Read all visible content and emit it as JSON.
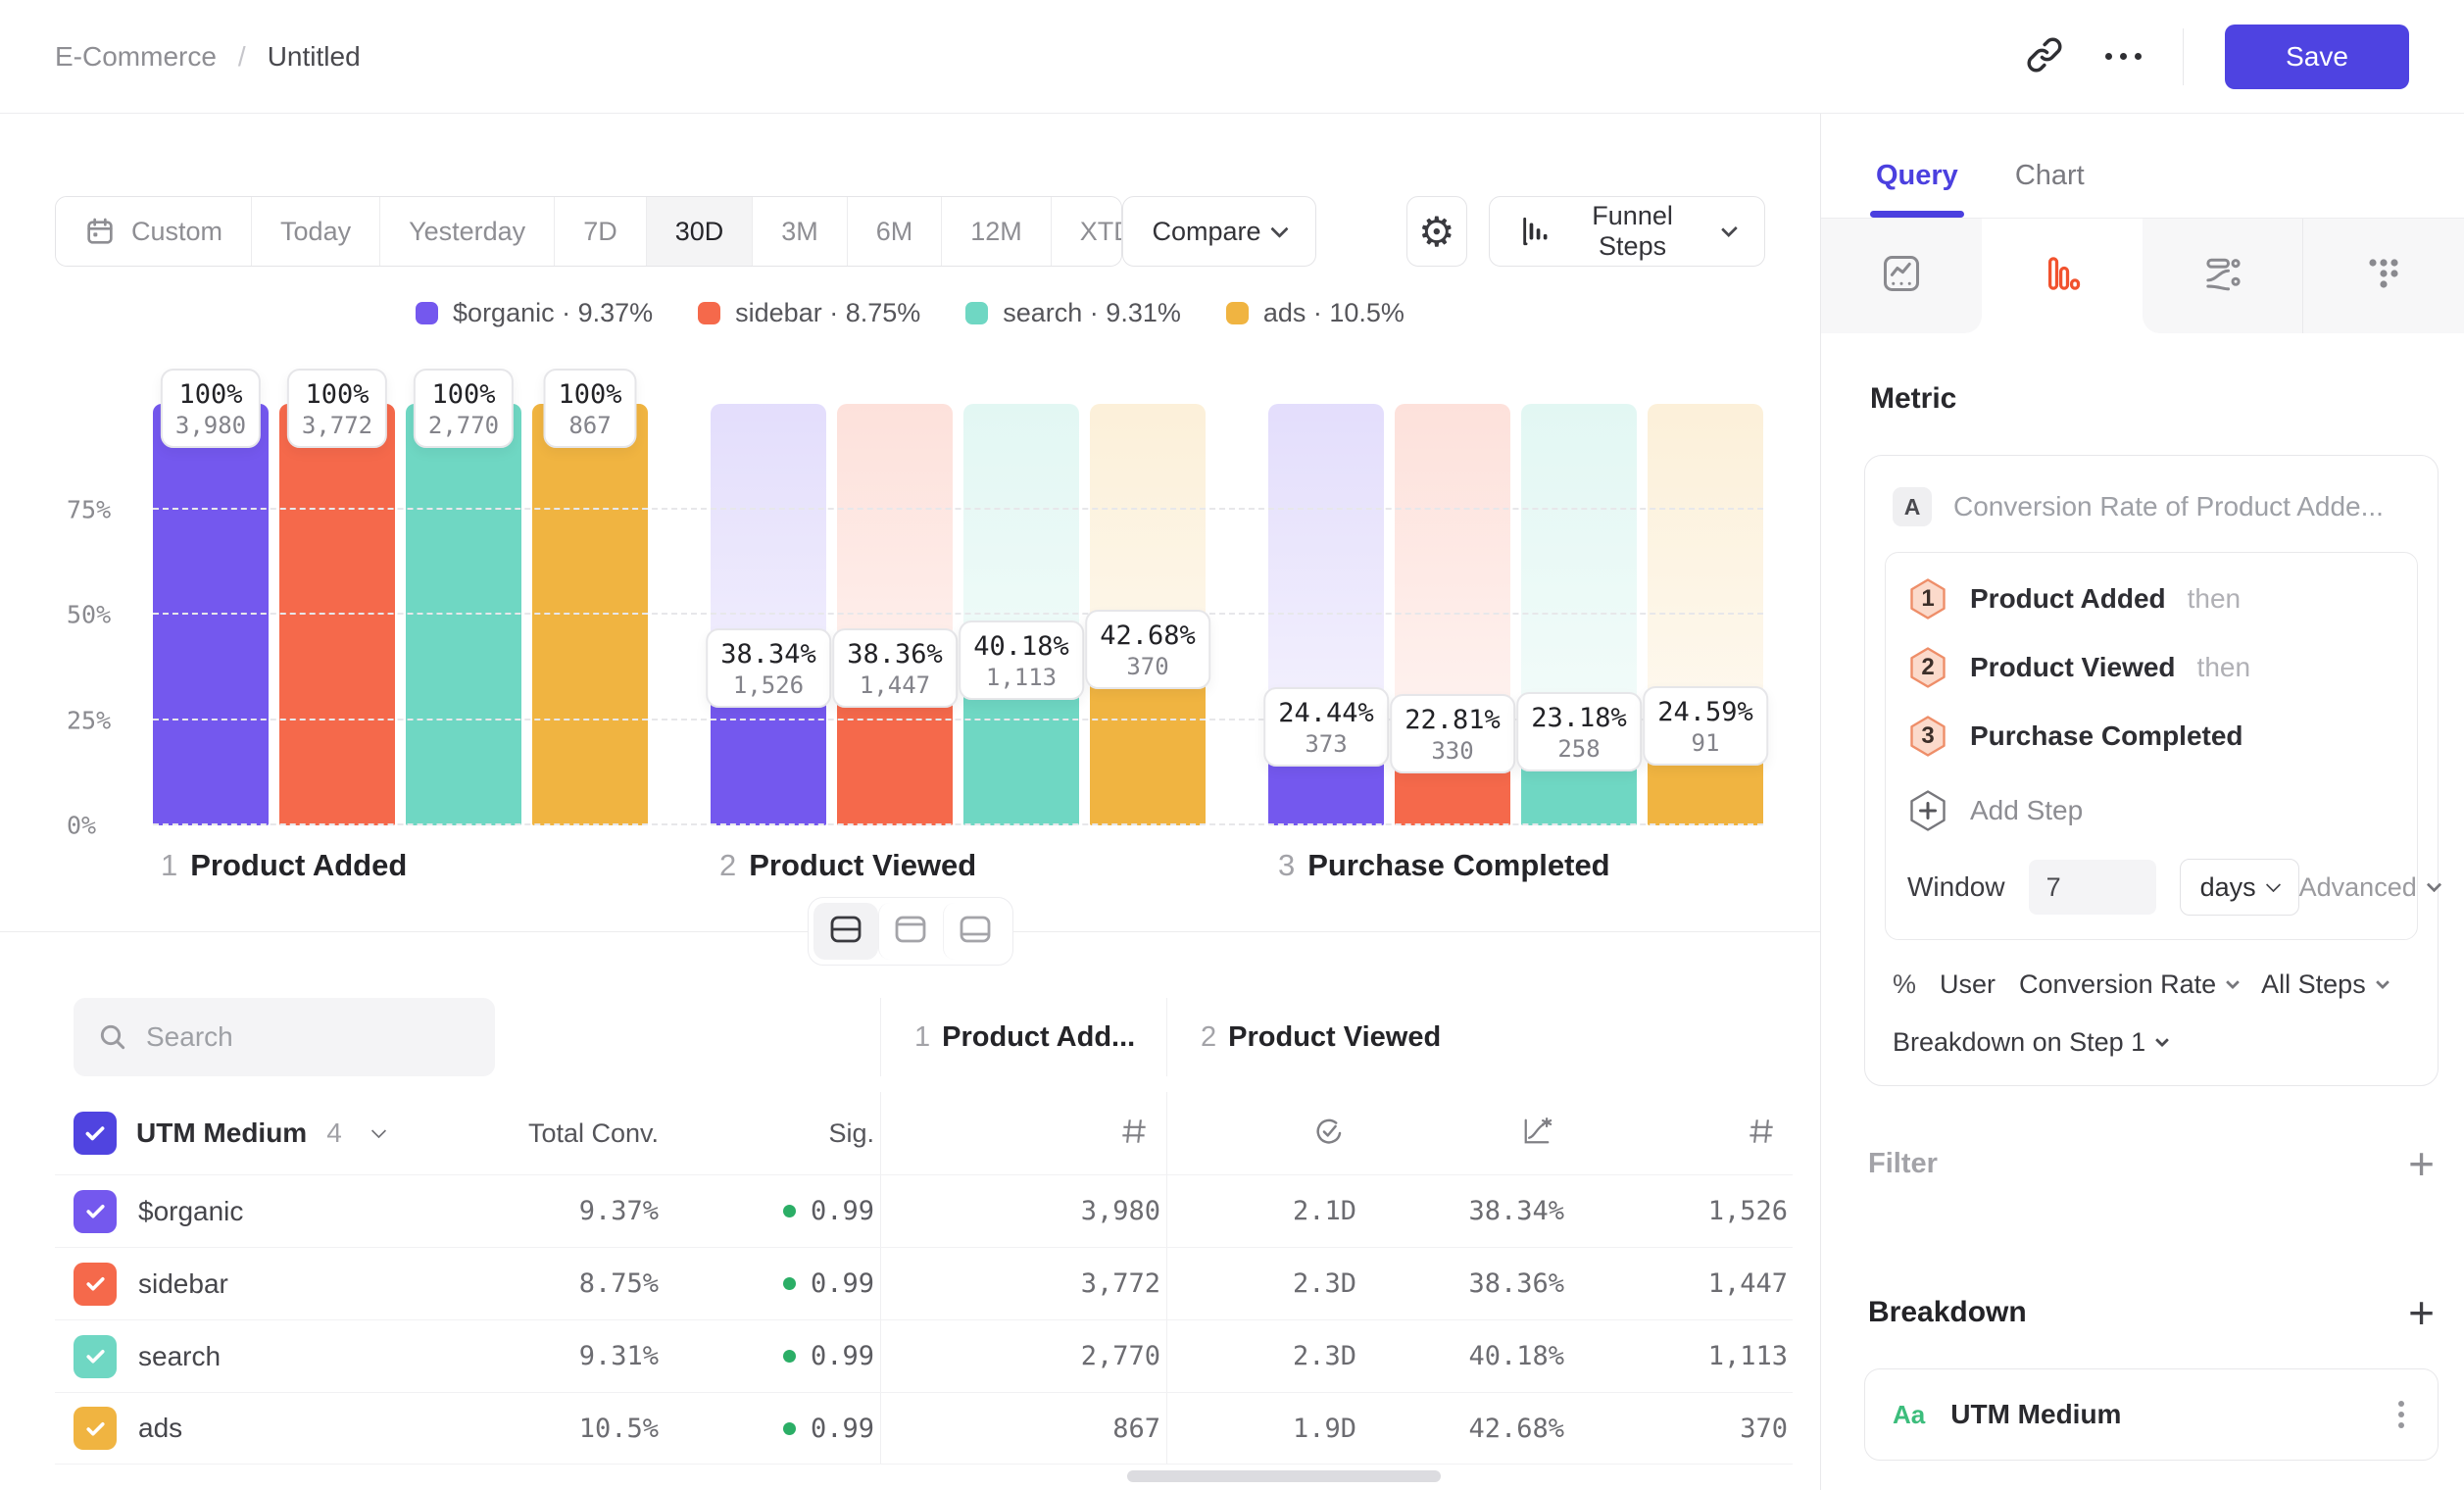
{
  "app": {
    "accent": "#4E43E1"
  },
  "header": {
    "breadcrumb_root": "E-Commerce",
    "breadcrumb_sep": "/",
    "breadcrumb_current": "Untitled",
    "save_label": "Save"
  },
  "toolbar": {
    "date_ranges": [
      {
        "label": "Custom",
        "icon": "calendar"
      },
      {
        "label": "Today"
      },
      {
        "label": "Yesterday"
      },
      {
        "label": "7D"
      },
      {
        "label": "30D"
      },
      {
        "label": "3M"
      },
      {
        "label": "6M"
      },
      {
        "label": "12M"
      },
      {
        "label": "XTD",
        "chevron": true
      }
    ],
    "selected_range": "30D",
    "compare_label": "Compare",
    "chart_type_label": "Funnel Steps"
  },
  "legend": {
    "items": [
      {
        "name": "$organic",
        "value": "9.37%",
        "color": "#7458EE"
      },
      {
        "name": "sidebar",
        "value": "8.75%",
        "color": "#F5694B"
      },
      {
        "name": "search",
        "value": "9.31%",
        "color": "#6FD7C3"
      },
      {
        "name": "ads",
        "value": "10.5%",
        "color": "#F0B441"
      }
    ]
  },
  "chart_data": {
    "type": "bar",
    "title": "Funnel Steps",
    "categories": [
      {
        "n": "1",
        "label": "Product Added"
      },
      {
        "n": "2",
        "label": "Product Viewed"
      },
      {
        "n": "3",
        "label": "Purchase Completed"
      }
    ],
    "y_ticks": [
      "0%",
      "25%",
      "50%",
      "75%"
    ],
    "ylim": [
      0,
      100
    ],
    "grid": "dashed-horizontal",
    "legend_position": "top-center",
    "series": [
      {
        "name": "$organic",
        "color": "#7458EE",
        "conversion_pct": [
          100,
          38.34,
          24.44
        ],
        "counts": [
          3980,
          1526,
          373
        ]
      },
      {
        "name": "sidebar",
        "color": "#F5694B",
        "conversion_pct": [
          100,
          38.36,
          22.81
        ],
        "counts": [
          3772,
          1447,
          330
        ]
      },
      {
        "name": "search",
        "color": "#6FD7C3",
        "conversion_pct": [
          100,
          40.18,
          23.18
        ],
        "counts": [
          2770,
          1113,
          258
        ]
      },
      {
        "name": "ads",
        "color": "#F0B441",
        "conversion_pct": [
          100,
          42.68,
          24.59
        ],
        "counts": [
          867,
          370,
          91
        ]
      }
    ]
  },
  "view_toggle": {
    "options": [
      "split-view",
      "chart-only",
      "table-only"
    ],
    "selected": "split-view"
  },
  "table": {
    "search_placeholder": "Search",
    "group_by": "UTM Medium",
    "group_count": "4",
    "col_total": "Total Conv.",
    "col_sig": "Sig.",
    "step_groups": [
      {
        "n": "1",
        "label": "Product Add..."
      },
      {
        "n": "2",
        "label": "Product Viewed"
      }
    ],
    "sig_color": "#2BAE66",
    "rows": [
      {
        "name": "$organic",
        "color": "#7458EE",
        "total_conv": "9.37%",
        "sig": "0.99",
        "step1_count": "3,980",
        "avg_time": "2.1D",
        "conv_rate": "38.34%",
        "converted": "1,526"
      },
      {
        "name": "sidebar",
        "color": "#F5694B",
        "total_conv": "8.75%",
        "sig": "0.99",
        "step1_count": "3,772",
        "avg_time": "2.3D",
        "conv_rate": "38.36%",
        "converted": "1,447"
      },
      {
        "name": "search",
        "color": "#6FD7C3",
        "total_conv": "9.31%",
        "sig": "0.99",
        "step1_count": "2,770",
        "avg_time": "2.3D",
        "conv_rate": "40.18%",
        "converted": "1,113"
      },
      {
        "name": "ads",
        "color": "#F0B441",
        "total_conv": "10.5%",
        "sig": "0.99",
        "step1_count": "867",
        "avg_time": "1.9D",
        "conv_rate": "42.68%",
        "converted": "370"
      }
    ]
  },
  "panel": {
    "tabs": [
      {
        "label": "Query",
        "active": true
      },
      {
        "label": "Chart",
        "active": false
      }
    ],
    "metric_heading": "Metric",
    "metric": {
      "badge": "A",
      "title": "Conversion Rate of Product Adde...",
      "steps": [
        {
          "n": "1",
          "label": "Product Added",
          "suffix": "then"
        },
        {
          "n": "2",
          "label": "Product Viewed",
          "suffix": "then"
        },
        {
          "n": "3",
          "label": "Purchase Completed",
          "suffix": ""
        }
      ],
      "add_step_label": "Add Step",
      "window_label": "Window",
      "window_value": "7",
      "window_unit": "days",
      "advanced_label": "Advanced",
      "measure_prefix": "%",
      "measure_entity": "User",
      "measure_metric": "Conversion Rate",
      "measure_scope": "All Steps",
      "breakdown_on": "Breakdown on Step 1",
      "step_badge_fill": "#FBDACB",
      "step_badge_stroke": "#EE8E69"
    },
    "filter": {
      "label": "Filter",
      "add": "+"
    },
    "breakdown": {
      "label": "Breakdown",
      "add": "+",
      "items": [
        {
          "type_badge": "Aa",
          "label": "UTM Medium"
        }
      ]
    }
  }
}
